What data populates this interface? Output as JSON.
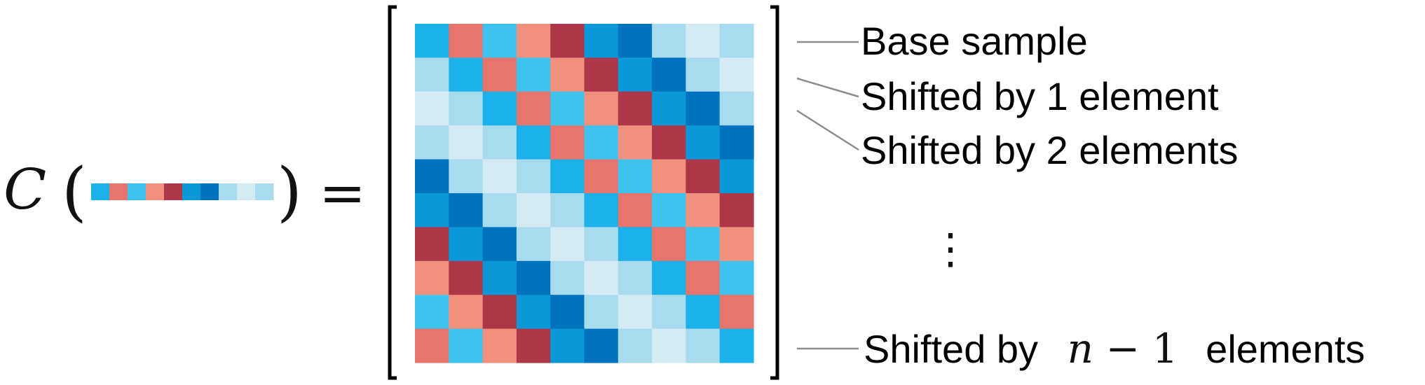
{
  "equation": {
    "function_symbol": "C",
    "open_paren": "(",
    "close_paren": ")",
    "equals": "=",
    "base_vector": [
      "c0",
      "c1",
      "c2",
      "c3",
      "c4",
      "c5",
      "c6",
      "c7",
      "c8",
      "c9"
    ]
  },
  "palette": {
    "c0": "#1AB2E8",
    "c1": "#E8746E",
    "c2": "#3EC3EE",
    "c3": "#F2907E",
    "c4": "#AD3649",
    "c5": "#0A98D8",
    "c6": "#0173BE",
    "c7": "#A9DBEE",
    "c8": "#D4EBF3",
    "c9": "#A9DBEE"
  },
  "matrix": {
    "size": 10,
    "rule": "row i is the base sample cyclically shifted right by i elements"
  },
  "row_labels": {
    "base": "Base sample",
    "shift_1": "Shifted by 1 element",
    "shift_2": "Shifted by 2 elements",
    "ellipsis": "⋮",
    "shift_last_prefix": "Shifted by",
    "shift_last_var": "n",
    "shift_last_op": "−",
    "shift_last_num": "1",
    "shift_last_suffix": "elements"
  },
  "colors": {
    "bracket": "#000000",
    "leader_line": "#8C8C8C"
  }
}
